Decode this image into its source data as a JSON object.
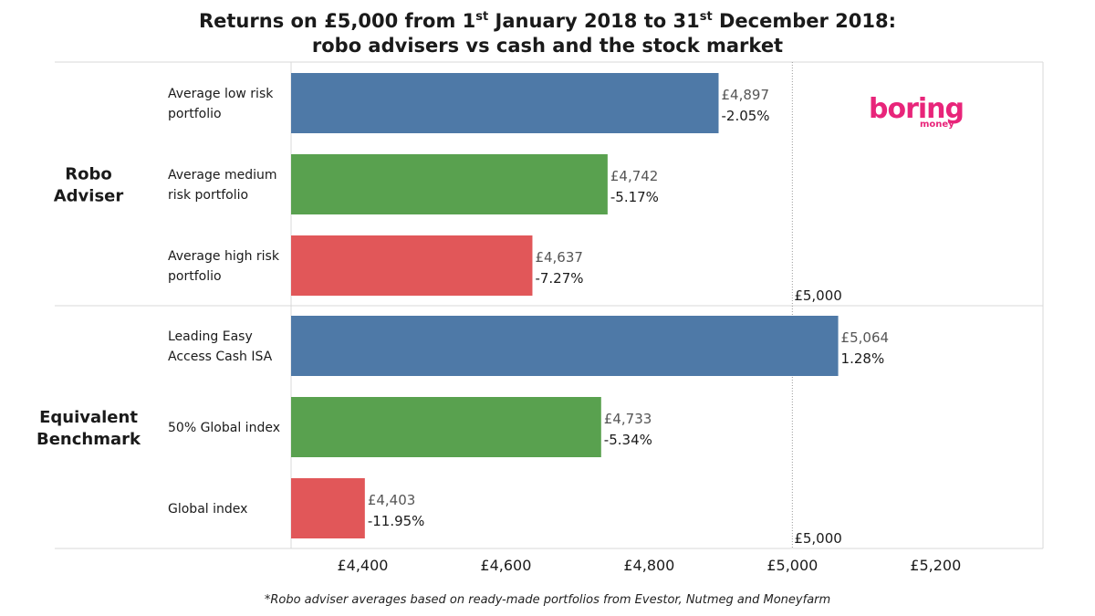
{
  "title": {
    "line1_pre": "Returns on £5,000 from 1",
    "line1_sup1": "st",
    "line1_mid": " January 2018 to 31",
    "line1_sup2": "st",
    "line1_post": " December 2018:",
    "line2": "robo advisers vs cash and the stock market"
  },
  "footnote": "*Robo adviser averages based on ready-made portfolios from Evestor, Nutmeg and Moneyfarm",
  "logo": {
    "main": "boring",
    "sub": "money"
  },
  "chart_data": {
    "type": "bar",
    "orientation": "horizontal",
    "xlim": [
      4300,
      5350
    ],
    "xticks": [
      4400,
      4600,
      4800,
      5000,
      5200
    ],
    "xtick_labels": [
      "£4,400",
      "£4,600",
      "£4,800",
      "£5,000",
      "£5,200"
    ],
    "reference_line": {
      "value": 5000,
      "label": "£5,000"
    },
    "groups": [
      {
        "name": "Robo Adviser",
        "label_lines": [
          "Robo",
          "Adviser"
        ],
        "bars": [
          {
            "label_lines": [
              "Average low risk",
              "portfolio"
            ],
            "value": 4897,
            "value_label": "£4,897",
            "pct_label": "-2.05%",
            "color": "#4e79a7"
          },
          {
            "label_lines": [
              "Average medium",
              "risk portfolio"
            ],
            "value": 4742,
            "value_label": "£4,742",
            "pct_label": "-5.17%",
            "color": "#59a14f"
          },
          {
            "label_lines": [
              "Average high risk",
              "portfolio"
            ],
            "value": 4637,
            "value_label": "£4,637",
            "pct_label": "-7.27%",
            "color": "#e15759"
          }
        ]
      },
      {
        "name": "Equivalent Benchmark",
        "label_lines": [
          "Equivalent",
          "Benchmark"
        ],
        "bars": [
          {
            "label_lines": [
              "Leading Easy",
              "Access Cash ISA"
            ],
            "value": 5064,
            "value_label": "£5,064",
            "pct_label": "1.28%",
            "color": "#4e79a7"
          },
          {
            "label_lines": [
              "50% Global index"
            ],
            "value": 4733,
            "value_label": "£4,733",
            "pct_label": "-5.34%",
            "color": "#59a14f"
          },
          {
            "label_lines": [
              "Global index"
            ],
            "value": 4403,
            "value_label": "£4,403",
            "pct_label": "-11.95%",
            "color": "#e15759"
          }
        ]
      }
    ]
  }
}
